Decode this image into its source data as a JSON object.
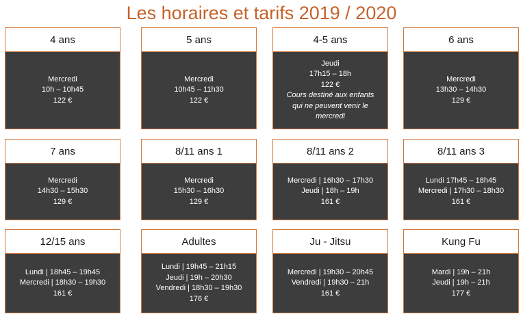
{
  "title": "Les horaires et tarifs 2019 / 2020",
  "rows": [
    [
      {
        "name": "4 ans",
        "lines": [
          "Mercredi",
          "10h – 10h45",
          "122 €"
        ]
      },
      {
        "name": "5 ans",
        "lines": [
          "Mercredi",
          "10h45 – 11h30",
          "122 €"
        ]
      },
      {
        "name": "4-5 ans",
        "lines": [
          "Jeudi",
          "17h15 – 18h",
          "122 €"
        ],
        "note_lines": [
          "Cours destiné aux enfants",
          "qui ne peuvent venir le",
          "mercredi"
        ]
      },
      {
        "name": "6 ans",
        "lines": [
          "Mercredi",
          "13h30 – 14h30",
          "129 €"
        ]
      }
    ],
    [
      {
        "name": "7 ans",
        "lines": [
          "Mercredi",
          "14h30 – 15h30",
          "129 €"
        ]
      },
      {
        "name": "8/11 ans 1",
        "lines": [
          "Mercredi",
          "15h30 – 16h30",
          "129 €"
        ]
      },
      {
        "name": "8/11 ans 2",
        "lines": [
          "Mercredi | 16h30 – 17h30",
          "Jeudi | 18h – 19h",
          "161 €"
        ]
      },
      {
        "name": "8/11 ans 3",
        "lines": [
          "Lundi 17h45 – 18h45",
          "Mercredi | 17h30 – 18h30",
          "161 €"
        ]
      }
    ],
    [
      {
        "name": "12/15 ans",
        "lines": [
          "Lundi | 18h45 – 19h45",
          "Mercredi | 18h30 – 19h30",
          "161 €"
        ]
      },
      {
        "name": "Adultes",
        "lines": [
          "Lundi | 19h45 – 21h15",
          "Jeudi | 19h – 20h30",
          "Vendredi | 18h30 – 19h30",
          "176 €"
        ]
      },
      {
        "name": "Ju - Jitsu",
        "lines": [
          "Mercredi | 19h30 – 20h45",
          "Vendredi | 19h30 – 21h",
          "161 €"
        ]
      },
      {
        "name": "Kung Fu",
        "lines": [
          "Mardi | 19h – 21h",
          "Jeudi | 19h – 21h",
          "177 €"
        ]
      }
    ]
  ]
}
